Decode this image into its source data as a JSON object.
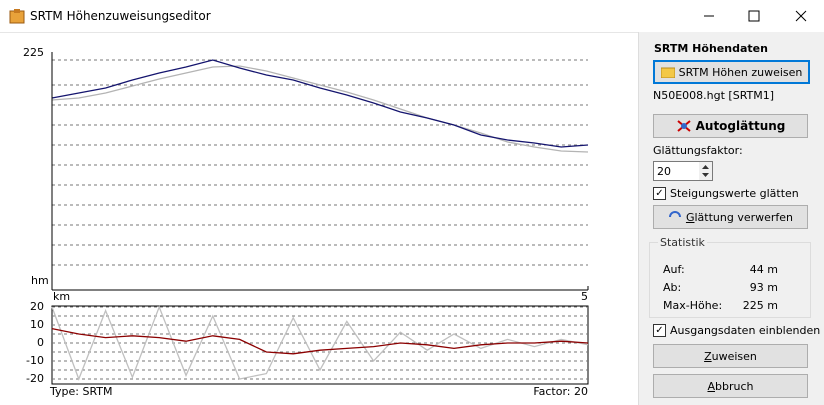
{
  "window": {
    "title": "SRTM Höhenzuweisungseditor"
  },
  "profile_chart": {
    "type": "line",
    "y_unit": "hm",
    "x_unit": "km",
    "xlim": [
      0,
      5
    ],
    "xticks": [
      5
    ],
    "ylim": [
      0,
      225
    ],
    "yticks": [
      225
    ],
    "x": [
      0,
      0.25,
      0.5,
      0.75,
      1,
      1.25,
      1.5,
      1.75,
      2,
      2.25,
      2.5,
      2.75,
      3,
      3.25,
      3.5,
      3.75,
      4,
      4.25,
      4.5,
      4.75,
      5
    ],
    "series": [
      {
        "color": "#b4b4b4",
        "values": [
          185,
          187,
          192,
          199,
          206,
          212,
          218,
          219,
          214,
          207,
          200,
          193,
          185,
          176,
          167,
          160,
          152,
          143,
          138,
          134,
          133
        ]
      },
      {
        "color": "#14146e",
        "values": [
          187,
          192,
          197,
          205,
          212,
          218,
          225,
          217,
          210,
          205,
          197,
          190,
          182,
          173,
          167,
          160,
          150,
          145,
          142,
          138,
          140
        ]
      }
    ]
  },
  "gradient_chart": {
    "type": "line",
    "xlim": [
      0,
      5
    ],
    "ylim": [
      -20,
      20
    ],
    "yticks": [
      20,
      10,
      0,
      -10,
      -20
    ],
    "x": [
      0,
      0.25,
      0.5,
      0.75,
      1,
      1.25,
      1.5,
      1.75,
      2,
      2.25,
      2.5,
      2.75,
      3,
      3.25,
      3.5,
      3.75,
      4,
      4.25,
      4.5,
      4.75,
      5
    ],
    "series": [
      {
        "color": "#c0c0c0",
        "values": [
          20,
          -20,
          18,
          -19,
          20,
          -18,
          15,
          -20,
          -17,
          14,
          -15,
          12,
          -10,
          6,
          -4,
          5,
          -3,
          2,
          -2,
          2,
          -1
        ]
      },
      {
        "color": "#8b0000",
        "values": [
          8,
          5,
          3,
          4,
          3,
          1,
          4,
          2,
          -5,
          -6,
          -4,
          -3,
          -2,
          0,
          -1,
          -3,
          -1,
          0,
          0,
          1,
          0
        ]
      }
    ]
  },
  "status": {
    "type": "Type: SRTM",
    "factor": "Factor: 20"
  },
  "panel": {
    "heading": "SRTM Höhendaten",
    "assign_button": "SRTM Höhen zuweisen",
    "file": "N50E008.hgt [SRTM1]",
    "auto_button": "Autoglättung",
    "factor_label": "Glättungsfaktor:",
    "factor_value": "20",
    "smooth_checkbox": "Steigungswerte glätten",
    "discard_button": "Glättung verwerfen",
    "stats": {
      "title": "Statistik",
      "rows": [
        [
          "Auf:",
          "44 m"
        ],
        [
          "Ab:",
          "93 m"
        ],
        [
          "Max-Höhe:",
          "225 m"
        ]
      ]
    },
    "show_checkbox": "Ausgangsdaten einblenden",
    "ok_button": "Zuweisen",
    "cancel_button": "Abbruch"
  }
}
